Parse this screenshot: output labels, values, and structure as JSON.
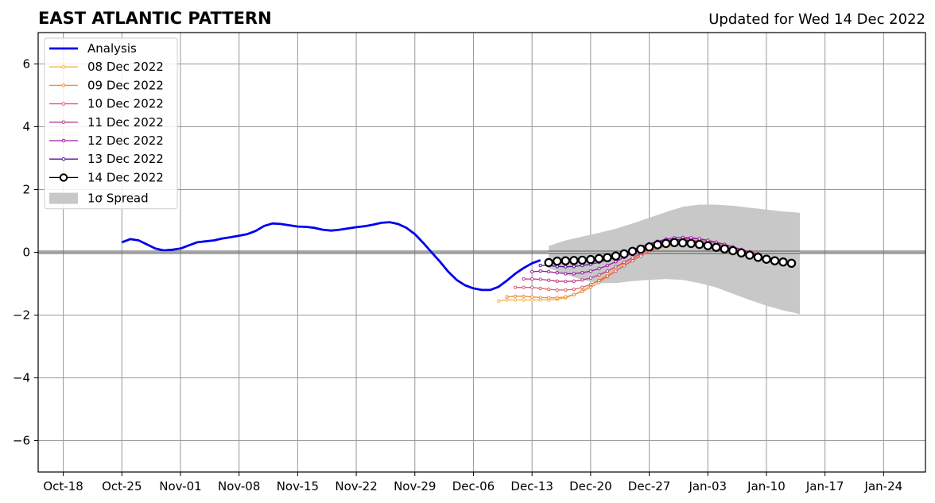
{
  "title": "EAST ATLANTIC PATTERN",
  "subtitle": "Updated for Wed 14 Dec 2022",
  "chart_data": {
    "type": "line",
    "title": "EAST ATLANTIC PATTERN",
    "subtitle": "Updated for Wed 14 Dec 2022",
    "xlabel": "",
    "ylabel": "",
    "x_ticks": [
      "Oct-18",
      "Oct-25",
      "Nov-01",
      "Nov-08",
      "Nov-15",
      "Nov-22",
      "Nov-29",
      "Dec-06",
      "Dec-13",
      "Dec-20",
      "Dec-27",
      "Jan-03",
      "Jan-10",
      "Jan-17",
      "Jan-24"
    ],
    "y_ticks": [
      "−6",
      "−4",
      "−2",
      "0",
      "2",
      "4",
      "6"
    ],
    "xlim": [
      "2022-10-15",
      "2023-01-29"
    ],
    "ylim": [
      -7,
      7
    ],
    "grid": true,
    "legend_position": "top-left",
    "zero_line": true,
    "colors": {
      "analysis": "#0000ee",
      "spread": "#c8c8c8",
      "grid": "#999999"
    },
    "analysis": {
      "name": "Analysis",
      "color": "#0000ee",
      "x": [
        "2022-10-25",
        "2022-10-26",
        "2022-10-27",
        "2022-10-28",
        "2022-10-29",
        "2022-10-30",
        "2022-10-31",
        "2022-11-01",
        "2022-11-02",
        "2022-11-03",
        "2022-11-04",
        "2022-11-05",
        "2022-11-06",
        "2022-11-07",
        "2022-11-08",
        "2022-11-09",
        "2022-11-10",
        "2022-11-11",
        "2022-11-12",
        "2022-11-13",
        "2022-11-14",
        "2022-11-15",
        "2022-11-16",
        "2022-11-17",
        "2022-11-18",
        "2022-11-19",
        "2022-11-20",
        "2022-11-21",
        "2022-11-22",
        "2022-11-23",
        "2022-11-24",
        "2022-11-25",
        "2022-11-26",
        "2022-11-27",
        "2022-11-28",
        "2022-11-29",
        "2022-11-30",
        "2022-12-01",
        "2022-12-02",
        "2022-12-03",
        "2022-12-04",
        "2022-12-05",
        "2022-12-06",
        "2022-12-07",
        "2022-12-08",
        "2022-12-09",
        "2022-12-10",
        "2022-12-11",
        "2022-12-12",
        "2022-12-13",
        "2022-12-14"
      ],
      "values": [
        0.32,
        0.42,
        0.38,
        0.25,
        0.12,
        0.06,
        0.08,
        0.12,
        0.22,
        0.32,
        0.35,
        0.38,
        0.44,
        0.48,
        0.53,
        0.58,
        0.68,
        0.84,
        0.92,
        0.9,
        0.86,
        0.82,
        0.81,
        0.78,
        0.72,
        0.69,
        0.72,
        0.76,
        0.8,
        0.83,
        0.88,
        0.94,
        0.96,
        0.9,
        0.78,
        0.58,
        0.3,
        0.0,
        -0.3,
        -0.62,
        -0.88,
        -1.05,
        -1.15,
        -1.2,
        -1.2,
        -1.1,
        -0.9,
        -0.68,
        -0.5,
        -0.35,
        -0.25
      ]
    },
    "spread": {
      "name": "1σ Spread",
      "x": [
        "2022-12-15",
        "2022-12-17",
        "2022-12-19",
        "2022-12-21",
        "2022-12-23",
        "2022-12-25",
        "2022-12-27",
        "2022-12-29",
        "2022-12-31",
        "2023-01-02",
        "2023-01-04",
        "2023-01-06",
        "2023-01-08",
        "2023-01-10",
        "2023-01-12",
        "2023-01-14"
      ],
      "upper": [
        0.2,
        0.38,
        0.5,
        0.62,
        0.75,
        0.92,
        1.1,
        1.28,
        1.45,
        1.52,
        1.52,
        1.48,
        1.42,
        1.36,
        1.3,
        1.26
      ],
      "lower": [
        -0.5,
        -0.7,
        -0.88,
        -0.98,
        -0.98,
        -0.92,
        -0.88,
        -0.85,
        -0.88,
        -0.98,
        -1.12,
        -1.32,
        -1.52,
        -1.7,
        -1.85,
        -1.97
      ]
    },
    "series": [
      {
        "name": "08 Dec 2022",
        "color": "#f5b341",
        "start": "2022-12-09",
        "values": [
          -1.55,
          -1.52,
          -1.52,
          -1.52,
          -1.52,
          -1.52,
          -1.52,
          -1.5,
          -1.45,
          -1.35,
          -1.22,
          -1.05,
          -0.88,
          -0.7,
          -0.52,
          -0.35,
          -0.2,
          -0.06,
          0.05,
          0.12,
          0.18,
          0.22
        ]
      },
      {
        "name": "09 Dec 2022",
        "color": "#ee8b46",
        "start": "2022-12-10",
        "values": [
          -1.42,
          -1.4,
          -1.4,
          -1.42,
          -1.44,
          -1.45,
          -1.45,
          -1.42,
          -1.35,
          -1.25,
          -1.12,
          -0.96,
          -0.78,
          -0.6,
          -0.42,
          -0.25,
          -0.1,
          0.02,
          0.12,
          0.2,
          0.25
        ]
      },
      {
        "name": "10 Dec 2022",
        "color": "#dd5f6e",
        "start": "2022-12-11",
        "values": [
          -1.12,
          -1.12,
          -1.12,
          -1.15,
          -1.18,
          -1.2,
          -1.2,
          -1.18,
          -1.12,
          -1.02,
          -0.9,
          -0.76,
          -0.6,
          -0.43,
          -0.27,
          -0.12,
          0.02,
          0.15,
          0.25,
          0.32,
          0.36,
          0.38,
          0.37,
          0.34,
          0.28,
          0.2,
          0.12,
          0.05,
          -0.02,
          -0.07
        ]
      },
      {
        "name": "11 Dec 2022",
        "color": "#bb3e8f",
        "start": "2022-12-12",
        "values": [
          -0.85,
          -0.85,
          -0.86,
          -0.89,
          -0.92,
          -0.93,
          -0.92,
          -0.88,
          -0.82,
          -0.72,
          -0.6,
          -0.46,
          -0.32,
          -0.18,
          -0.04,
          0.1,
          0.22,
          0.32,
          0.38,
          0.42,
          0.44,
          0.42,
          0.38,
          0.32,
          0.25,
          0.17,
          0.09,
          0.02,
          -0.04
        ]
      },
      {
        "name": "12 Dec 2022",
        "color": "#9b1aa4",
        "start": "2022-12-13",
        "values": [
          -0.62,
          -0.6,
          -0.62,
          -0.65,
          -0.68,
          -0.68,
          -0.65,
          -0.6,
          -0.52,
          -0.42,
          -0.3,
          -0.16,
          -0.02,
          0.12,
          0.25,
          0.35,
          0.42,
          0.46,
          0.47,
          0.46,
          0.43,
          0.38,
          0.32,
          0.25,
          0.17,
          0.08,
          0.0,
          -0.08
        ]
      },
      {
        "name": "13 Dec 2022",
        "color": "#5b0fa1",
        "start": "2022-12-14",
        "values": [
          -0.42,
          -0.42,
          -0.45,
          -0.46,
          -0.45,
          -0.42,
          -0.38,
          -0.32,
          -0.24,
          -0.14,
          -0.03,
          0.08,
          0.18,
          0.27,
          0.34,
          0.38,
          0.4,
          0.4,
          0.37,
          0.32,
          0.25,
          0.18,
          0.1,
          0.02,
          -0.06,
          -0.12
        ]
      },
      {
        "name": "14 Dec 2022",
        "color": "#000000",
        "start": "2022-12-15",
        "values": [
          -0.33,
          -0.28,
          -0.27,
          -0.26,
          -0.25,
          -0.23,
          -0.2,
          -0.17,
          -0.12,
          -0.05,
          0.03,
          0.1,
          0.17,
          0.24,
          0.28,
          0.31,
          0.3,
          0.28,
          0.25,
          0.21,
          0.16,
          0.11,
          0.05,
          -0.02,
          -0.09,
          -0.16,
          -0.22,
          -0.27,
          -0.31,
          -0.35
        ]
      }
    ]
  }
}
